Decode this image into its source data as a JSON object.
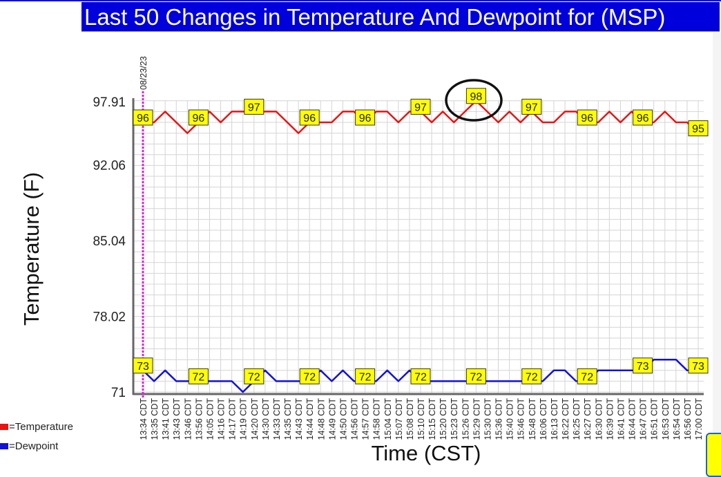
{
  "chart_data": {
    "type": "line",
    "title": "Last 50 Changes in Temperature And Dewpoint for (MSP)",
    "xlabel": "Time (CST)",
    "ylabel": "Temperature (F)",
    "date_marker": "08/23/23",
    "y_ticks": [
      "97.91",
      "92.06",
      "85.04",
      "78.02",
      "71"
    ],
    "ylim": [
      71,
      98.6
    ],
    "grid": true,
    "x": [
      "13:34 CDT",
      "13:35 CDT",
      "13:41 CDT",
      "13:43 CDT",
      "13:46 CDT",
      "13:56 CDT",
      "14:05 CDT",
      "14:16 CDT",
      "14:17 CDT",
      "14:19 CDT",
      "14:20 CDT",
      "14:30 CDT",
      "14:33 CDT",
      "14:35 CDT",
      "14:43 CDT",
      "14:44 CDT",
      "14:48 CDT",
      "14:49 CDT",
      "14:50 CDT",
      "14:56 CDT",
      "14:57 CDT",
      "14:58 CDT",
      "15:04 CDT",
      "15:07 CDT",
      "15:08 CDT",
      "15:10 CDT",
      "15:15 CDT",
      "15:20 CDT",
      "15:23 CDT",
      "15:26 CDT",
      "15:29 CDT",
      "15:30 CDT",
      "15:36 CDT",
      "15:40 CDT",
      "15:46 CDT",
      "15:48 CDT",
      "16:06 CDT",
      "16:13 CDT",
      "16:22 CDT",
      "16:25 CDT",
      "16:27 CDT",
      "16:30 CDT",
      "16:39 CDT",
      "16:41 CDT",
      "16:44 CDT",
      "16:47 CDT",
      "16:51 CDT",
      "16:53 CDT",
      "16:54 CDT",
      "16:56 CDT",
      "17:00 CDT"
    ],
    "series": [
      {
        "name": "Temperature",
        "color": "#ee1111",
        "values": [
          96,
          96,
          97,
          96,
          95,
          96,
          97,
          96,
          97,
          97,
          97,
          97,
          97,
          96,
          95,
          96,
          96,
          96,
          97,
          97,
          96,
          97,
          97,
          96,
          97,
          97,
          96,
          97,
          96,
          97,
          98,
          97,
          96,
          97,
          96,
          97,
          96,
          96,
          97,
          97,
          96,
          96,
          97,
          96,
          97,
          96,
          96,
          97,
          96,
          96,
          95
        ]
      },
      {
        "name": "Dewpoint",
        "color": "#1111dd",
        "values": [
          73,
          72,
          73,
          72,
          72,
          72,
          72,
          72,
          72,
          71,
          72,
          73,
          72,
          72,
          72,
          72,
          73,
          72,
          73,
          72,
          72,
          72,
          73,
          72,
          73,
          72,
          72,
          72,
          72,
          72,
          72,
          72,
          72,
          72,
          72,
          72,
          72,
          73,
          73,
          72,
          72,
          73,
          73,
          73,
          73,
          73,
          74,
          74,
          74,
          73,
          73
        ]
      }
    ],
    "data_label_every": 5,
    "highlighted_point": {
      "series": "Temperature",
      "x": "15:29 CDT",
      "value": 98
    },
    "legend": {
      "placement": "bottom-left",
      "entries": [
        "=Temperature",
        "=Dewpoint"
      ]
    }
  }
}
